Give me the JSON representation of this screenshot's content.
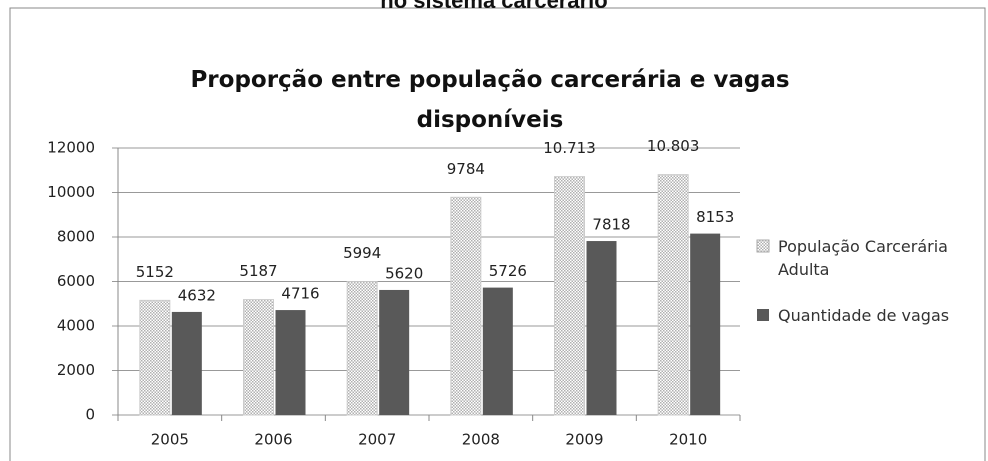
{
  "chart_data": {
    "type": "bar",
    "heading": "no sistema carcerário",
    "title": "Proporção entre população carcerária e vagas disponíveis",
    "categories": [
      "2005",
      "2006",
      "2007",
      "2008",
      "2009",
      "2010"
    ],
    "series": [
      {
        "name": "População Carcerária Adulta",
        "color": "#b0b0b0",
        "pattern": "dotted",
        "values": [
          5152,
          5187,
          5994,
          9784,
          10713,
          10803
        ],
        "value_labels": [
          "5152",
          "5187",
          "5994",
          "9784",
          "10.713",
          "10.803"
        ]
      },
      {
        "name": "Quantidade de vagas",
        "color": "#595959",
        "values": [
          4632,
          4716,
          5620,
          5726,
          7818,
          8153
        ]
      }
    ],
    "ylim": [
      0,
      12000
    ],
    "yticks": [
      0,
      2000,
      4000,
      6000,
      8000,
      10000,
      12000
    ],
    "grid": true,
    "legend": "right"
  }
}
